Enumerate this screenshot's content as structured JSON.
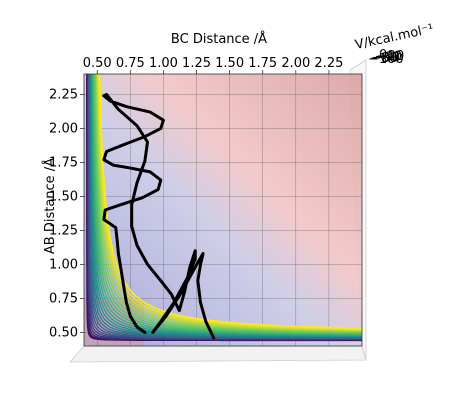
{
  "chart_data": {
    "type": "contour",
    "xlabel": "BC Distance /Å",
    "ylabel": "AB Distance /Å",
    "zlabel": "V/kcal.mol⁻¹",
    "xlim": [
      0.4,
      2.5
    ],
    "ylim": [
      0.4,
      2.4
    ],
    "xticks": [
      "0.50",
      "0.75",
      "1.00",
      "1.25",
      "1.50",
      "1.75",
      "2.00",
      "2.25"
    ],
    "yticks": [
      "0.50",
      "0.75",
      "1.00",
      "1.25",
      "1.50",
      "1.75",
      "2.00",
      "2.25"
    ],
    "zticks": [
      "−100",
      "−80",
      "−60",
      "−40",
      "−20",
      "0"
    ],
    "colormap": "viridis",
    "background_colormap": "coolwarm",
    "grid": true,
    "trajectory": {
      "color": "#000000",
      "points": [
        [
          0.86,
          0.5
        ],
        [
          0.8,
          0.54
        ],
        [
          0.75,
          0.62
        ],
        [
          0.72,
          0.72
        ],
        [
          0.7,
          0.84
        ],
        [
          0.68,
          0.96
        ],
        [
          0.66,
          1.08
        ],
        [
          0.65,
          1.18
        ],
        [
          0.64,
          1.27
        ],
        [
          0.55,
          1.33
        ],
        [
          0.56,
          1.4
        ],
        [
          0.68,
          1.44
        ],
        [
          0.84,
          1.49
        ],
        [
          0.96,
          1.55
        ],
        [
          0.98,
          1.62
        ],
        [
          0.9,
          1.68
        ],
        [
          0.74,
          1.71
        ],
        [
          0.62,
          1.73
        ],
        [
          0.55,
          1.77
        ],
        [
          0.57,
          1.83
        ],
        [
          0.7,
          1.88
        ],
        [
          0.86,
          1.94
        ],
        [
          0.98,
          2.0
        ],
        [
          1.0,
          2.06
        ],
        [
          0.9,
          2.12
        ],
        [
          0.72,
          2.16
        ],
        [
          0.6,
          2.2
        ],
        [
          0.55,
          2.24
        ],
        [
          0.57,
          2.25
        ],
        [
          0.66,
          2.14
        ],
        [
          0.8,
          2.02
        ],
        [
          0.88,
          1.9
        ],
        [
          0.86,
          1.76
        ],
        [
          0.8,
          1.6
        ],
        [
          0.76,
          1.44
        ],
        [
          0.76,
          1.28
        ],
        [
          0.8,
          1.14
        ],
        [
          0.88,
          1.0
        ],
        [
          0.98,
          0.88
        ],
        [
          1.06,
          0.78
        ],
        [
          1.1,
          0.7
        ],
        [
          1.12,
          0.66
        ],
        [
          1.16,
          0.8
        ],
        [
          1.2,
          0.98
        ],
        [
          1.24,
          1.1
        ],
        [
          1.24,
          1.04
        ],
        [
          1.18,
          0.9
        ],
        [
          1.08,
          0.72
        ],
        [
          0.98,
          0.58
        ],
        [
          0.92,
          0.5
        ],
        [
          1.02,
          0.62
        ],
        [
          1.14,
          0.8
        ],
        [
          1.24,
          0.98
        ],
        [
          1.3,
          1.08
        ],
        [
          1.28,
          1.0
        ],
        [
          1.26,
          0.88
        ],
        [
          1.28,
          0.72
        ],
        [
          1.32,
          0.58
        ],
        [
          1.38,
          0.46
        ]
      ]
    }
  }
}
